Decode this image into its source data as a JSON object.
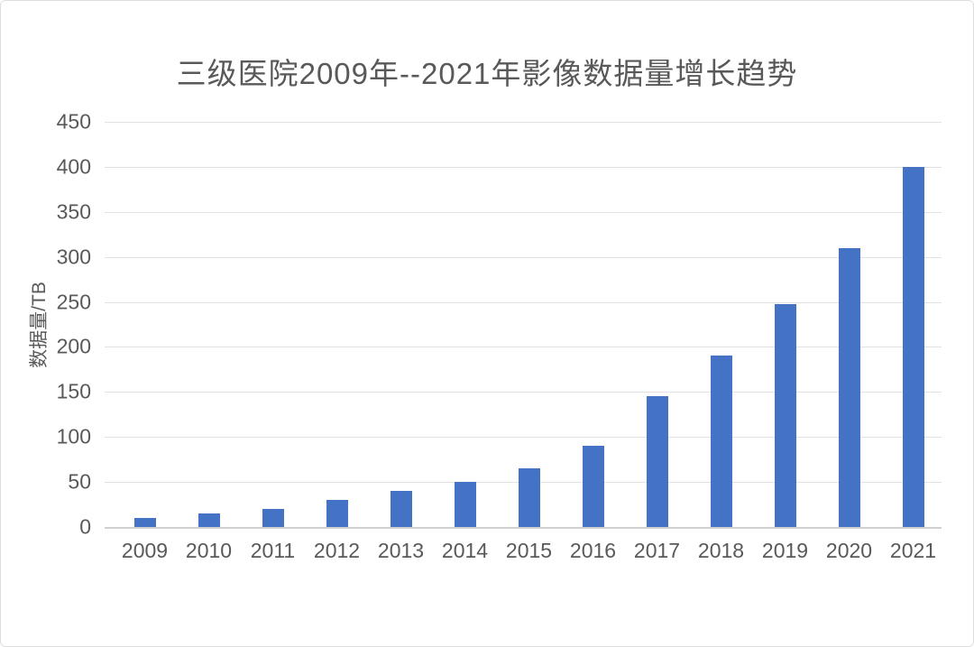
{
  "page": {
    "background": "#FFFFFF",
    "border_color": "#DEDEDE"
  },
  "chart_data": {
    "type": "bar",
    "title": "三级医院2009年--2021年影像数据量增长趋势",
    "categories": [
      "2009",
      "2010",
      "2011",
      "2012",
      "2013",
      "2014",
      "2015",
      "2016",
      "2017",
      "2018",
      "2019",
      "2020",
      "2021"
    ],
    "values": [
      10,
      15,
      20,
      30,
      40,
      50,
      65,
      90,
      145,
      190,
      248,
      310,
      400
    ],
    "xlabel": "",
    "ylabel": "数据量/TB",
    "ylim": [
      0,
      450
    ],
    "ytick_step": 50,
    "yticks": [
      0,
      50,
      100,
      150,
      200,
      250,
      300,
      350,
      400,
      450
    ],
    "grid": true,
    "legend": "none",
    "bar_color": "#4472C4",
    "gridline_color": "#E2E2E2",
    "axis_line_color": "#D0D0D0",
    "text_color": "#595959"
  }
}
